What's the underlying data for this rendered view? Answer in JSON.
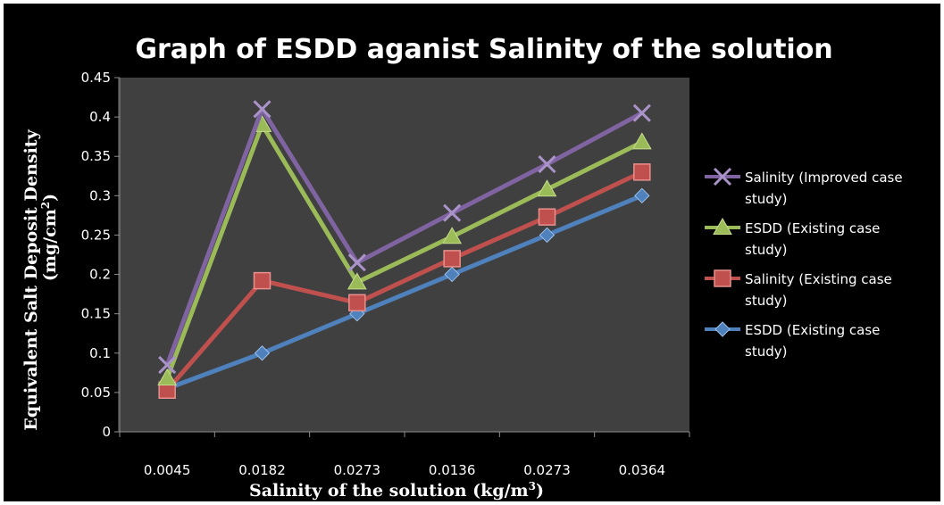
{
  "chart_data": {
    "type": "line",
    "title": "Graph of ESDD aganist Salinity of the solution",
    "xlabel": "Salinity of the solution (kg/m",
    "xlabel_sup": "3",
    "xlabel_end": ")",
    "ylabel_line1": "Equivalent Salt Deposit Density",
    "ylabel_line2": "(mg/cm",
    "ylabel_sup": "2",
    "ylabel_end": ")",
    "categories": [
      "0.0045",
      "0.0182",
      "0.0273",
      "0.0136",
      "0.0273",
      "0.0364"
    ],
    "ylim": [
      0,
      0.45
    ],
    "yticks": [
      "0",
      "0.05",
      "0.1",
      "0.15",
      "0.2",
      "0.25",
      "0.3",
      "0.35",
      "0.4",
      "0.45"
    ],
    "grid": false,
    "legend_position": "right",
    "series": [
      {
        "name": "Salinity (Improved case study)",
        "legend_lines": [
          "Salinity (Improved case",
          "study)"
        ],
        "color": "#8064a2",
        "marker": "x",
        "values": [
          0.085,
          0.41,
          0.215,
          0.278,
          0.34,
          0.405
        ]
      },
      {
        "name": "ESDD (Existing case study)",
        "legend_lines": [
          "ESDD (Existing case",
          "study)"
        ],
        "color": "#9bbb59",
        "marker": "triangle",
        "values": [
          0.068,
          0.39,
          0.19,
          0.248,
          0.308,
          0.368
        ]
      },
      {
        "name": "Salinity (Existing case study)",
        "legend_lines": [
          "Salinity (Existing case",
          "study)"
        ],
        "color": "#c0504d",
        "marker": "square",
        "values": [
          0.053,
          0.192,
          0.164,
          0.22,
          0.273,
          0.33
        ]
      },
      {
        "name": "ESDD (Existing case study)",
        "legend_lines": [
          "ESDD (Existing case",
          "study)"
        ],
        "color": "#4f81bd",
        "marker": "diamond",
        "values": [
          0.055,
          0.1,
          0.15,
          0.2,
          0.25,
          0.3
        ]
      }
    ]
  }
}
